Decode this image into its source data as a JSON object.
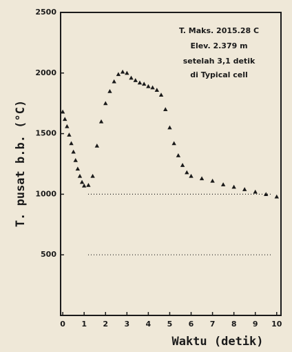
{
  "chart_data": {
    "type": "scatter",
    "marker": "triangle",
    "color": "#1a1a1a",
    "ylabel": "T. pusat b.b. (°C)",
    "xlabel": "Waktu (detik)",
    "annotation": [
      "T. Maks. 2015.28 C",
      "Elev. 2.379 m",
      "setelah 3,1 detik",
      "di  Typical cell"
    ],
    "xlim": [
      -0.1,
      10.2
    ],
    "ylim": [
      0,
      2500
    ],
    "xticks": [
      0,
      1,
      2,
      3,
      4,
      5,
      6,
      7,
      8,
      9,
      10
    ],
    "yticks": [
      500,
      1000,
      1500,
      2000,
      2500
    ],
    "hlines": [
      1000,
      500
    ],
    "x": [
      0,
      0.1,
      0.2,
      0.3,
      0.4,
      0.5,
      0.6,
      0.7,
      0.8,
      0.9,
      1.0,
      1.2,
      1.4,
      1.6,
      1.8,
      2.0,
      2.2,
      2.4,
      2.6,
      2.8,
      3.0,
      3.2,
      3.4,
      3.6,
      3.8,
      4.0,
      4.2,
      4.4,
      4.6,
      4.8,
      5.0,
      5.2,
      5.4,
      5.6,
      5.8,
      6.0,
      6.5,
      7,
      7.5,
      8,
      8.5,
      9,
      9.5,
      10
    ],
    "values": [
      1680,
      1620,
      1560,
      1490,
      1420,
      1350,
      1280,
      1210,
      1150,
      1100,
      1070,
      1075,
      1150,
      1400,
      1600,
      1750,
      1850,
      1930,
      1990,
      2010,
      2000,
      1960,
      1940,
      1920,
      1910,
      1890,
      1880,
      1860,
      1820,
      1700,
      1550,
      1420,
      1320,
      1240,
      1180,
      1150,
      1130,
      1110,
      1080,
      1060,
      1040,
      1020,
      1000,
      980
    ]
  }
}
